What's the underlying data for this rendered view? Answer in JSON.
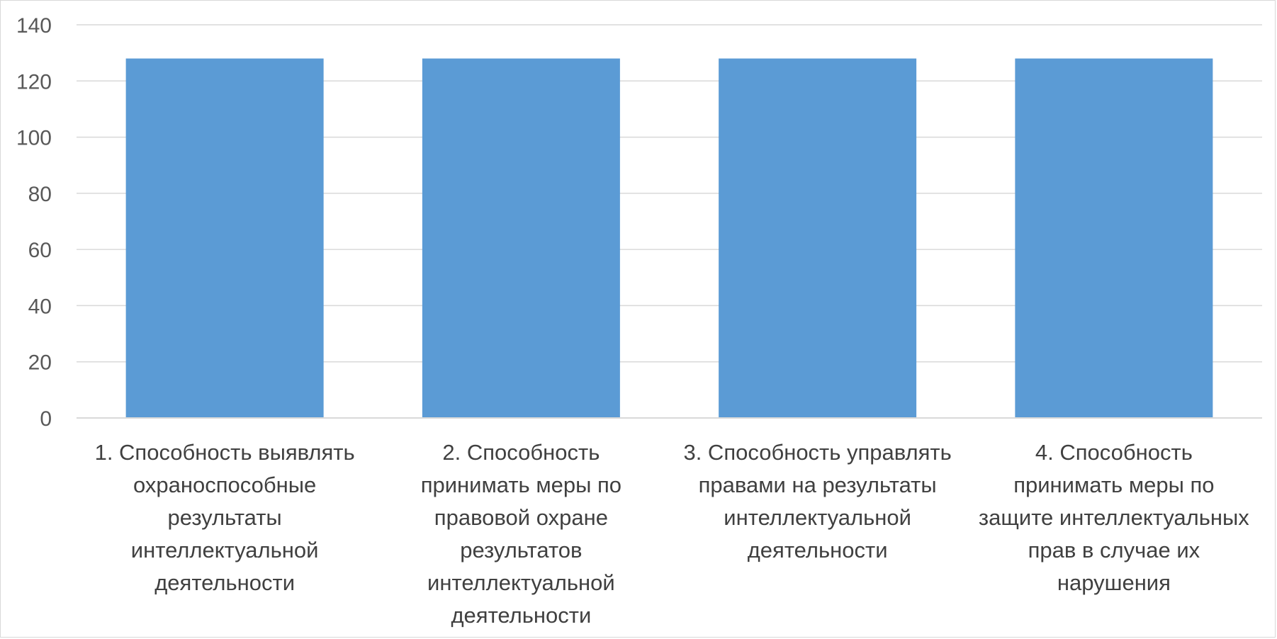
{
  "chart_data": {
    "type": "bar",
    "title": "",
    "xlabel": "",
    "ylabel": "",
    "ylim": [
      0,
      140
    ],
    "yticks": [
      0,
      20,
      40,
      60,
      80,
      100,
      120,
      140
    ],
    "grid": true,
    "legend": "none",
    "bar_color": "#5b9bd5",
    "categories": [
      [
        "1. Способность выявлять",
        "охраноспособные",
        "результаты",
        "интеллектуальной",
        "деятельности"
      ],
      [
        "2. Способность",
        "принимать меры по",
        "правовой охране",
        "результатов",
        "интеллектуальной",
        "деятельности"
      ],
      [
        "3. Способность управлять",
        "правами на результаты",
        "интеллектуальной",
        "деятельности"
      ],
      [
        "4. Способность",
        "принимать меры по",
        "защите интеллектуальных",
        "прав в случае их",
        "нарушения"
      ]
    ],
    "values": [
      128,
      128,
      128,
      128
    ]
  }
}
